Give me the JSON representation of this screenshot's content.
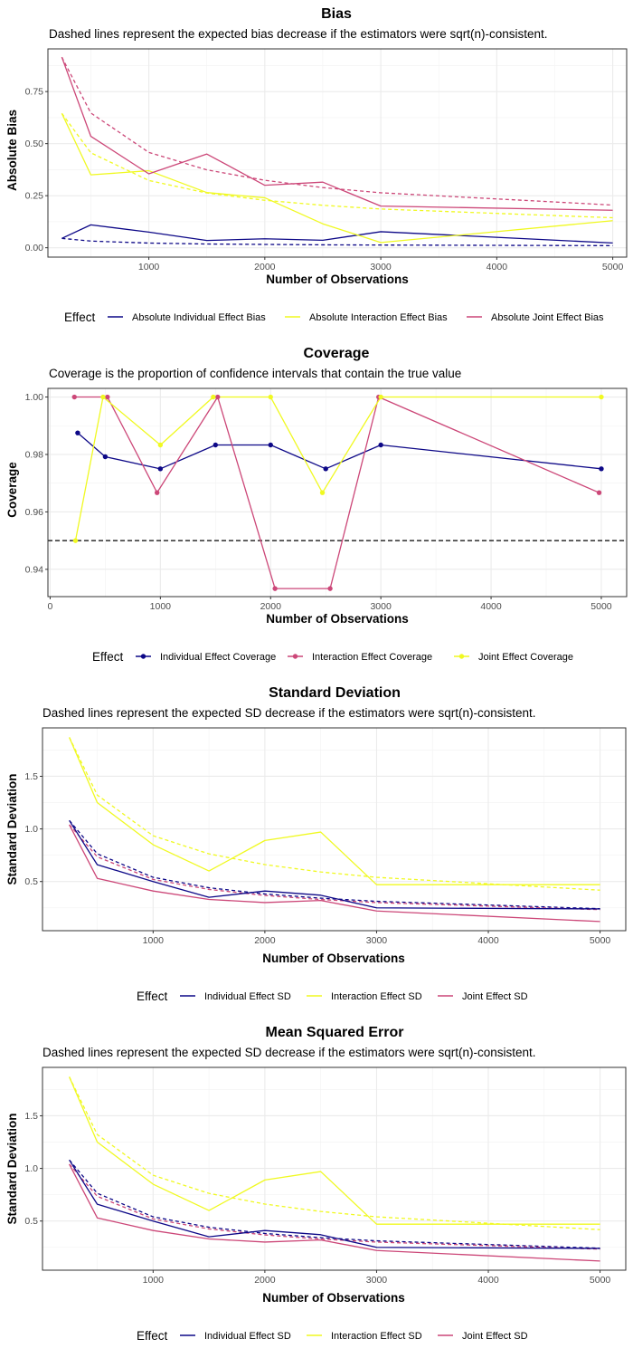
{
  "chart_data": [
    {
      "type": "line",
      "title": "Bias",
      "subtitle": "Dashed lines represent the expected bias decrease if the estimators were sqrt(n)-consistent.",
      "xlabel": "Number of Observations",
      "ylabel": "Absolute Bias",
      "xlim": [
        130,
        5120
      ],
      "ylim": [
        -0.045,
        0.955
      ],
      "xticks": [
        1000,
        2000,
        3000,
        4000,
        5000
      ],
      "xtick_labels": [
        "1000",
        "2000",
        "3000",
        "4000",
        "5000"
      ],
      "yticks": [
        0,
        0.25,
        0.5,
        0.75
      ],
      "ytick_labels": [
        "0.00",
        "0.25",
        "0.50",
        "0.75"
      ],
      "grid": true,
      "legend_title": "Effect",
      "legend_position": "bottom",
      "series": [
        {
          "name": "Absolute Individual Effect Bias",
          "color": "#0d0887",
          "style": "solid",
          "x": [
            250,
            500,
            1000,
            1500,
            2000,
            2500,
            3000,
            5000
          ],
          "y": [
            0.045,
            0.11,
            0.075,
            0.035,
            0.043,
            0.036,
            0.077,
            0.023
          ]
        },
        {
          "name": "Absolute Interaction Effect Bias",
          "color": "#f0f921",
          "style": "solid",
          "x": [
            250,
            500,
            1000,
            1500,
            2000,
            2500,
            3000,
            5000
          ],
          "y": [
            0.645,
            0.35,
            0.37,
            0.265,
            0.24,
            0.115,
            0.025,
            0.13
          ]
        },
        {
          "name": "Absolute Joint Effect Bias",
          "color": "#cc4778",
          "style": "solid",
          "x": [
            250,
            500,
            1000,
            1500,
            2000,
            2500,
            3000,
            5000
          ],
          "y": [
            0.915,
            0.535,
            0.355,
            0.45,
            0.3,
            0.315,
            0.2,
            0.18
          ]
        },
        {
          "name": "",
          "color": "#0d0887",
          "style": "dashed",
          "legend": false,
          "x": [
            250,
            500,
            1000,
            1500,
            2000,
            2500,
            3000,
            5000
          ],
          "y": [
            0.045,
            0.032,
            0.0225,
            0.018,
            0.016,
            0.014,
            0.013,
            0.01
          ]
        },
        {
          "name": "",
          "color": "#f0f921",
          "style": "dashed",
          "legend": false,
          "x": [
            250,
            500,
            1000,
            1500,
            2000,
            2500,
            3000,
            5000
          ],
          "y": [
            0.645,
            0.456,
            0.323,
            0.263,
            0.228,
            0.204,
            0.186,
            0.144
          ]
        },
        {
          "name": "",
          "color": "#cc4778",
          "style": "dashed",
          "legend": false,
          "x": [
            250,
            500,
            1000,
            1500,
            2000,
            2500,
            3000,
            5000
          ],
          "y": [
            0.915,
            0.647,
            0.458,
            0.374,
            0.324,
            0.289,
            0.264,
            0.205
          ]
        }
      ]
    },
    {
      "type": "line",
      "title": "Coverage",
      "subtitle": "Coverage is the proportion of confidence intervals that contain the true value",
      "xlabel": "Number of Observations",
      "ylabel": "Coverage",
      "xlim": [
        -20,
        5230
      ],
      "ylim": [
        0.9305,
        1.003
      ],
      "xticks": [
        0,
        1000,
        2000,
        3000,
        4000,
        5000
      ],
      "xtick_labels": [
        "0",
        "1000",
        "2000",
        "3000",
        "4000",
        "5000"
      ],
      "yticks": [
        0.94,
        0.96,
        0.98,
        1.0
      ],
      "ytick_labels": [
        "0.94",
        "0.96",
        "0.98",
        "1.00"
      ],
      "grid": true,
      "hline": {
        "y": 0.95,
        "color": "#000000",
        "style": "dashed"
      },
      "legend_title": "Effect",
      "legend_position": "bottom",
      "series": [
        {
          "name": "Individual Effect Coverage",
          "color": "#0d0887",
          "style": "solid",
          "points": true,
          "x": [
            250,
            500,
            1000,
            1500,
            2000,
            2500,
            3000,
            5000
          ],
          "y": [
            0.9875,
            0.9792,
            0.975,
            0.9833,
            0.9833,
            0.975,
            0.9833,
            0.975
          ]
        },
        {
          "name": "Interaction Effect Coverage",
          "color": "#cc4778",
          "style": "solid",
          "points": true,
          "x": [
            220,
            520,
            970,
            1520,
            2040,
            2540,
            2980,
            4980
          ],
          "y": [
            1.0,
            1.0,
            0.9667,
            1.0,
            0.9333,
            0.9333,
            1.0,
            0.9667
          ]
        },
        {
          "name": "Joint Effect Coverage",
          "color": "#f0f921",
          "style": "solid",
          "points": true,
          "x": [
            230,
            480,
            1000,
            1480,
            2000,
            2470,
            3000,
            5000
          ],
          "y": [
            0.95,
            1.0,
            0.9833,
            1.0,
            1.0,
            0.9667,
            1.0,
            1.0
          ]
        }
      ]
    },
    {
      "type": "line",
      "title": "Standard Deviation",
      "subtitle": "Dashed lines represent the expected SD decrease if the estimators were sqrt(n)-consistent.",
      "xlabel": "Number of Observations",
      "ylabel": "Standard Deviation",
      "xlim": [
        10,
        5230
      ],
      "ylim": [
        0.033,
        1.96
      ],
      "xticks": [
        1000,
        2000,
        3000,
        4000,
        5000
      ],
      "xtick_labels": [
        "1000",
        "2000",
        "3000",
        "4000",
        "5000"
      ],
      "yticks": [
        0.5,
        1.0,
        1.5
      ],
      "ytick_labels": [
        "0.5",
        "1.0",
        "1.5"
      ],
      "grid": true,
      "legend_title": "Effect",
      "legend_position": "bottom",
      "series": [
        {
          "name": "Individual Effect SD",
          "color": "#0d0887",
          "style": "solid",
          "x": [
            250,
            500,
            1000,
            1500,
            2000,
            2500,
            3000,
            5000
          ],
          "y": [
            1.08,
            0.66,
            0.5,
            0.35,
            0.41,
            0.37,
            0.25,
            0.24
          ]
        },
        {
          "name": "Interaction Effect SD",
          "color": "#f0f921",
          "style": "solid",
          "x": [
            250,
            500,
            1000,
            1500,
            2000,
            2500,
            3000,
            5000
          ],
          "y": [
            1.87,
            1.25,
            0.85,
            0.6,
            0.89,
            0.97,
            0.47,
            0.47
          ]
        },
        {
          "name": "Joint Effect SD",
          "color": "#cc4778",
          "style": "solid",
          "x": [
            250,
            500,
            1000,
            1500,
            2000,
            2500,
            3000,
            5000
          ],
          "y": [
            1.04,
            0.53,
            0.41,
            0.33,
            0.3,
            0.32,
            0.22,
            0.12
          ]
        },
        {
          "name": "",
          "color": "#0d0887",
          "style": "dashed",
          "legend": false,
          "x": [
            250,
            500,
            1000,
            1500,
            2000,
            2500,
            3000,
            5000
          ],
          "y": [
            1.08,
            0.764,
            0.54,
            0.441,
            0.382,
            0.342,
            0.312,
            0.242
          ]
        },
        {
          "name": "",
          "color": "#f0f921",
          "style": "dashed",
          "legend": false,
          "x": [
            250,
            500,
            1000,
            1500,
            2000,
            2500,
            3000,
            5000
          ],
          "y": [
            1.87,
            1.322,
            0.935,
            0.763,
            0.661,
            0.591,
            0.54,
            0.418
          ]
        },
        {
          "name": "",
          "color": "#cc4778",
          "style": "dashed",
          "legend": false,
          "x": [
            250,
            500,
            1000,
            1500,
            2000,
            2500,
            3000,
            5000
          ],
          "y": [
            1.04,
            0.735,
            0.52,
            0.425,
            0.368,
            0.329,
            0.3,
            0.233
          ]
        }
      ]
    },
    {
      "type": "line",
      "title": "Mean Squared Error",
      "subtitle": "Dashed lines represent the expected SD decrease if the estimators were sqrt(n)-consistent.",
      "xlabel": "Number of Observations",
      "ylabel": "Standard Deviation",
      "xlim": [
        10,
        5230
      ],
      "ylim": [
        0.033,
        1.96
      ],
      "xticks": [
        1000,
        2000,
        3000,
        4000,
        5000
      ],
      "xtick_labels": [
        "1000",
        "2000",
        "3000",
        "4000",
        "5000"
      ],
      "yticks": [
        0.5,
        1.0,
        1.5
      ],
      "ytick_labels": [
        "0.5",
        "1.0",
        "1.5"
      ],
      "grid": true,
      "legend_title": "Effect",
      "legend_position": "bottom",
      "series": [
        {
          "name": "Individual Effect SD",
          "color": "#0d0887",
          "style": "solid",
          "x": [
            250,
            500,
            1000,
            1500,
            2000,
            2500,
            3000,
            5000
          ],
          "y": [
            1.08,
            0.66,
            0.5,
            0.35,
            0.41,
            0.37,
            0.25,
            0.24
          ]
        },
        {
          "name": "Interaction Effect SD",
          "color": "#f0f921",
          "style": "solid",
          "x": [
            250,
            500,
            1000,
            1500,
            2000,
            2500,
            3000,
            5000
          ],
          "y": [
            1.87,
            1.25,
            0.85,
            0.6,
            0.89,
            0.97,
            0.47,
            0.47
          ]
        },
        {
          "name": "Joint Effect SD",
          "color": "#cc4778",
          "style": "solid",
          "x": [
            250,
            500,
            1000,
            1500,
            2000,
            2500,
            3000,
            5000
          ],
          "y": [
            1.04,
            0.53,
            0.41,
            0.33,
            0.3,
            0.32,
            0.22,
            0.12
          ]
        },
        {
          "name": "",
          "color": "#0d0887",
          "style": "dashed",
          "legend": false,
          "x": [
            250,
            500,
            1000,
            1500,
            2000,
            2500,
            3000,
            5000
          ],
          "y": [
            1.08,
            0.764,
            0.54,
            0.441,
            0.382,
            0.342,
            0.312,
            0.242
          ]
        },
        {
          "name": "",
          "color": "#f0f921",
          "style": "dashed",
          "legend": false,
          "x": [
            250,
            500,
            1000,
            1500,
            2000,
            2500,
            3000,
            5000
          ],
          "y": [
            1.87,
            1.322,
            0.935,
            0.763,
            0.661,
            0.591,
            0.54,
            0.418
          ]
        },
        {
          "name": "",
          "color": "#cc4778",
          "style": "dashed",
          "legend": false,
          "x": [
            250,
            500,
            1000,
            1500,
            2000,
            2500,
            3000,
            5000
          ],
          "y": [
            1.04,
            0.735,
            0.52,
            0.425,
            0.368,
            0.329,
            0.3,
            0.233
          ]
        }
      ]
    }
  ]
}
